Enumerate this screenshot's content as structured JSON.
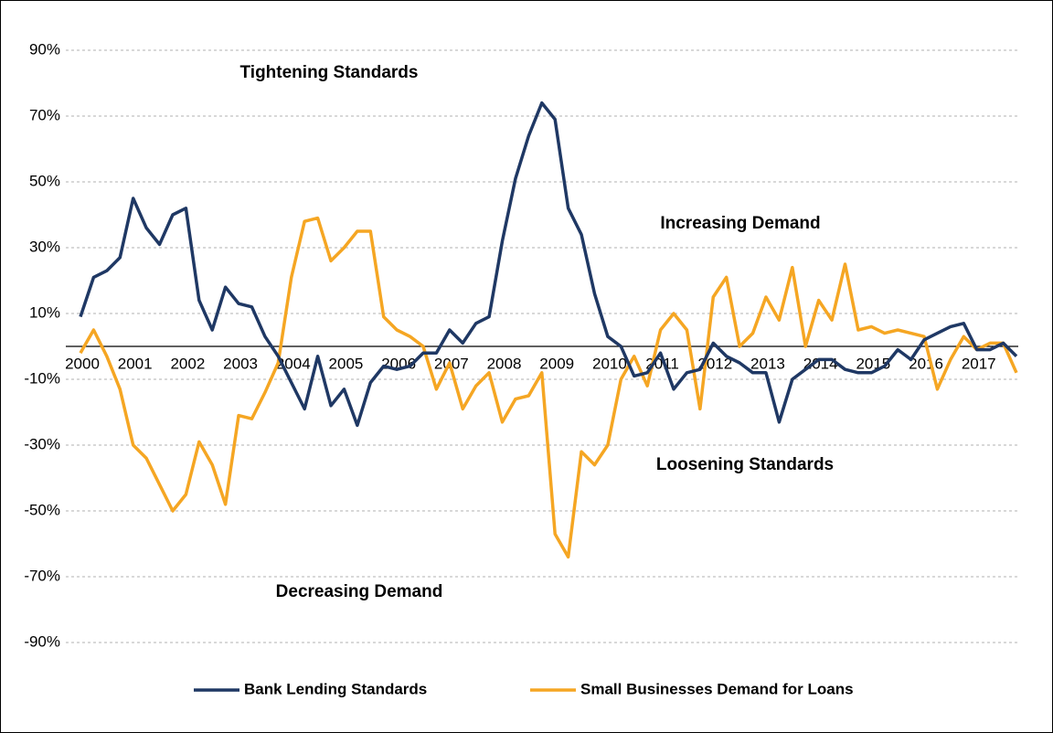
{
  "chart_data": {
    "type": "line",
    "categories": [
      "2000",
      null,
      null,
      null,
      "2001",
      null,
      null,
      null,
      "2002",
      null,
      null,
      null,
      "2003",
      null,
      null,
      null,
      "2004",
      null,
      null,
      null,
      "2005",
      null,
      null,
      null,
      "2006",
      null,
      null,
      null,
      "2007",
      null,
      null,
      null,
      "2008",
      null,
      null,
      null,
      "2009",
      null,
      null,
      null,
      "2010",
      null,
      null,
      null,
      "2011",
      null,
      null,
      null,
      "2012",
      null,
      null,
      null,
      "2013",
      null,
      null,
      null,
      "2014",
      null,
      null,
      null,
      "2015",
      null,
      null,
      null,
      "2016",
      null,
      null,
      null,
      "2017",
      null,
      null,
      null
    ],
    "series": [
      {
        "name": "Bank Lending Standards",
        "color": "#1f3864",
        "values": [
          9,
          21,
          23,
          27,
          45,
          36,
          31,
          40,
          42,
          14,
          5,
          18,
          13,
          12,
          3,
          -3,
          -11,
          -19,
          -3,
          -18,
          -13,
          -24,
          -11,
          -6,
          -7,
          -6,
          -2,
          -2,
          5,
          1,
          7,
          9,
          32,
          51,
          64,
          74,
          69,
          42,
          34,
          16,
          3,
          0,
          -9,
          -8,
          -2,
          -13,
          -8,
          -7,
          1,
          -3,
          -5,
          -8,
          -8,
          -23,
          -10,
          -7,
          -4,
          -4,
          -7,
          -8,
          -8,
          -6,
          -1,
          -4,
          2,
          4,
          6,
          7,
          -1,
          -1,
          1,
          -3
        ]
      },
      {
        "name": "Small Businesses Demand for Loans",
        "color": "#f5a623",
        "values": [
          -2,
          5,
          -3,
          -13,
          -30,
          -34,
          -42,
          -50,
          -45,
          -29,
          -36,
          -48,
          -21,
          -22,
          -14,
          -5,
          21,
          38,
          39,
          26,
          30,
          35,
          35,
          9,
          5,
          3,
          0,
          -13,
          -5,
          -19,
          -12,
          -8,
          -23,
          -16,
          -15,
          -8,
          -57,
          -64,
          -32,
          -36,
          -30,
          -10,
          -3,
          -12,
          5,
          10,
          5,
          -19,
          15,
          21,
          0,
          4,
          15,
          8,
          24,
          0,
          14,
          8,
          25,
          5,
          6,
          4,
          5,
          4,
          3,
          -13,
          -4,
          3,
          -1,
          1,
          1,
          -8
        ]
      }
    ],
    "ylim": [
      -90,
      90
    ],
    "yticks": [
      {
        "value": -90,
        "label": "-90%"
      },
      {
        "value": -70,
        "label": "-70%"
      },
      {
        "value": -50,
        "label": "-50%"
      },
      {
        "value": -30,
        "label": "-30%"
      },
      {
        "value": -10,
        "label": "-10%"
      },
      {
        "value": 10,
        "label": "10%"
      },
      {
        "value": 30,
        "label": "30%"
      },
      {
        "value": 50,
        "label": "50%"
      },
      {
        "value": 70,
        "label": "70%"
      },
      {
        "value": 90,
        "label": "90%"
      }
    ],
    "grid": true,
    "annotations": [
      "Tightening Standards",
      "Increasing Demand",
      "Loosening Standards",
      "Decreasing Demand"
    ],
    "legend": "bottom"
  }
}
